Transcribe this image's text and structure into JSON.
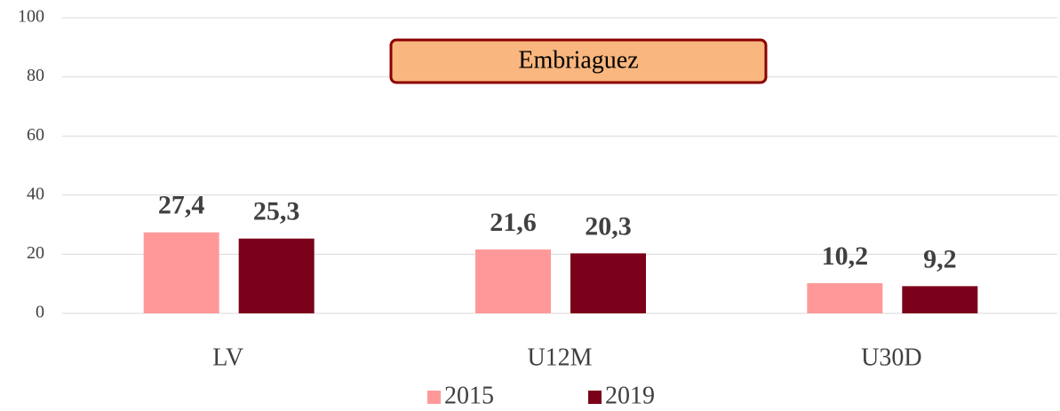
{
  "chart_data": {
    "type": "bar",
    "title": "Embriaguez",
    "categories": [
      "LV",
      "U12M",
      "U30D"
    ],
    "series": [
      {
        "name": "2015",
        "color": "#ff9999",
        "values": [
          27.4,
          21.6,
          10.2
        ],
        "value_labels": [
          "27,4",
          "21,6",
          "10,2"
        ]
      },
      {
        "name": "2019",
        "color": "#7b0019",
        "values": [
          25.3,
          20.3,
          9.2
        ],
        "value_labels": [
          "25,3",
          "20,3",
          "9,2"
        ]
      }
    ],
    "ylim": [
      0,
      100
    ],
    "yticks": [
      0,
      20,
      40,
      60,
      80,
      100
    ],
    "grid": true
  }
}
